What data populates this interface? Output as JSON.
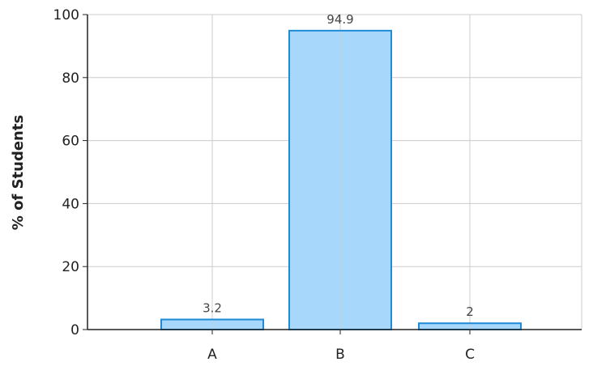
{
  "chart_data": {
    "type": "bar",
    "categories": [
      "A",
      "B",
      "C"
    ],
    "values": [
      3.2,
      94.9,
      2
    ],
    "data_labels": [
      "3.2",
      "94.9",
      "2"
    ],
    "title": "",
    "xlabel": "",
    "ylabel": "% of Students",
    "ylim": [
      0,
      100
    ],
    "yticks": [
      0,
      20,
      40,
      60,
      80,
      100
    ],
    "grid": true,
    "legend": "none",
    "colors": {
      "bar_fill": "#a7d8fb",
      "bar_stroke": "#1f8ad6",
      "grid": "#cccccc",
      "axis": "#222222"
    }
  }
}
